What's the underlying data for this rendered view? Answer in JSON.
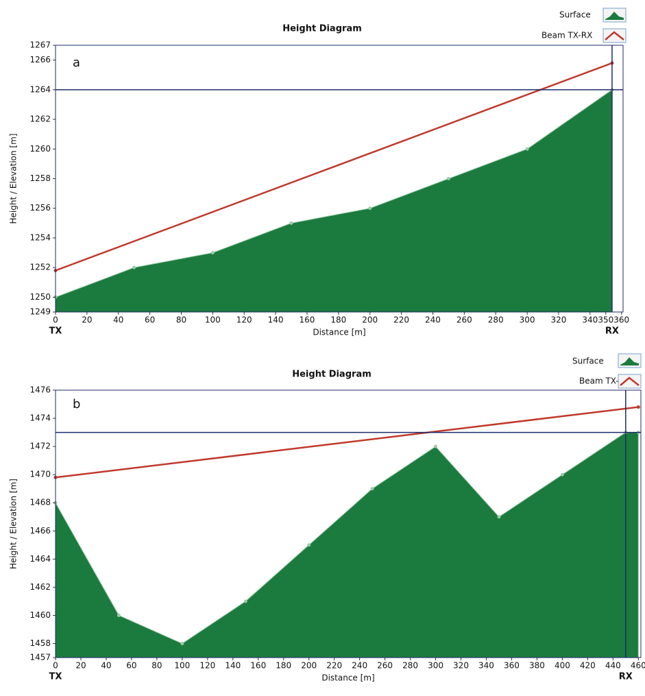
{
  "chart_data": [
    {
      "type": "area",
      "title": "Height Diagram",
      "panel_label": "a",
      "xlabel": "Distance [m]",
      "ylabel": "Height / Elevation [m]",
      "tx_label": "TX",
      "rx_label": "RX",
      "rx_distance": 354,
      "rx_height": 1264,
      "xlim": [
        0,
        361
      ],
      "ylim": [
        1249,
        1267
      ],
      "xticks": [
        0,
        20,
        40,
        60,
        80,
        100,
        120,
        140,
        160,
        180,
        200,
        220,
        240,
        260,
        280,
        300,
        320,
        340,
        350,
        360
      ],
      "yticks": [
        1249,
        1250,
        1252,
        1254,
        1256,
        1258,
        1260,
        1262,
        1264,
        1266,
        1267
      ],
      "legend": "upper right",
      "series": [
        {
          "name": "Surface",
          "color": "#1b7b3e",
          "fill": true,
          "x": [
            0,
            50,
            100,
            150,
            200,
            250,
            300,
            354
          ],
          "values": [
            1250,
            1252,
            1253,
            1255,
            1256,
            1258,
            1260,
            1264
          ]
        },
        {
          "name": "Beam TX-RX",
          "color": "#c0392b",
          "fill": false,
          "x": [
            0,
            354
          ],
          "values": [
            1251.8,
            1265.8
          ]
        }
      ]
    },
    {
      "type": "area",
      "title": "Height Diagram",
      "panel_label": "b",
      "xlabel": "Distance [m]",
      "ylabel": "Height / Elevation [m]",
      "tx_label": "TX",
      "rx_label": "RX",
      "rx_distance": 450,
      "rx_height": 1473,
      "xlim": [
        0,
        462
      ],
      "ylim": [
        1457,
        1476
      ],
      "xticks": [
        0,
        20,
        40,
        60,
        80,
        100,
        120,
        140,
        160,
        180,
        200,
        220,
        240,
        260,
        280,
        300,
        320,
        340,
        360,
        380,
        400,
        420,
        440,
        460
      ],
      "yticks": [
        1457,
        1458,
        1460,
        1462,
        1464,
        1466,
        1468,
        1470,
        1472,
        1474,
        1476
      ],
      "legend": "upper right",
      "series": [
        {
          "name": "Surface",
          "color": "#1b7b3e",
          "fill": true,
          "x": [
            0,
            50,
            100,
            150,
            200,
            250,
            300,
            350,
            400,
            450,
            460
          ],
          "values": [
            1468,
            1460,
            1458,
            1461,
            1465,
            1469,
            1472,
            1467,
            1470,
            1473,
            1473
          ]
        },
        {
          "name": "Beam TX-RX",
          "color": "#c0392b",
          "fill": false,
          "x": [
            0,
            460
          ],
          "values": [
            1469.8,
            1474.8
          ]
        }
      ]
    }
  ]
}
